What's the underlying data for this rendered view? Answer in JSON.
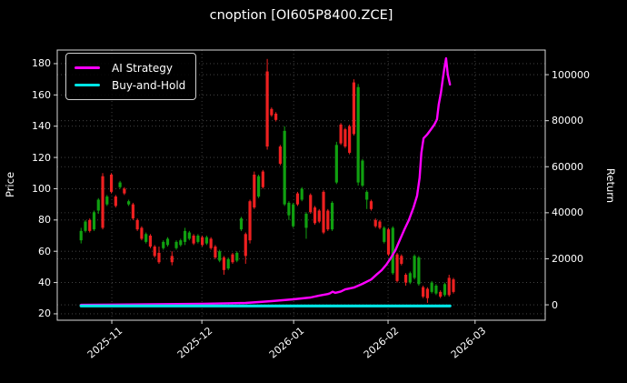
{
  "window": {
    "title": "cnoption [OI605P8400.ZCE]"
  },
  "chart_data": {
    "type": "candlestick",
    "title": "cnoption [OI605P8400.ZCE]",
    "ylabel_left": "Price",
    "ylabel_right": "Return",
    "grid": true,
    "legend_position": "upper-left",
    "x_ticks": [
      {
        "pos": 7.1,
        "label": "2025-11"
      },
      {
        "pos": 27.9,
        "label": "2025-12"
      },
      {
        "pos": 49.1,
        "label": "2026-01"
      },
      {
        "pos": 70.9,
        "label": "2026-02"
      },
      {
        "pos": 91.0,
        "label": "2026-03"
      }
    ],
    "xlim": [
      -5.5,
      107.2
    ],
    "price_ticks": [
      20,
      40,
      60,
      80,
      100,
      120,
      140,
      160,
      180
    ],
    "price_ylim": [
      15.9,
      188.7
    ],
    "return_ticks": [
      0,
      20000,
      40000,
      60000,
      80000,
      100000
    ],
    "return_ylim": [
      -6700,
      110700
    ],
    "colors": {
      "up": "#10a010",
      "down": "#ee2020",
      "strategy": "#ff00ff",
      "buyhold": "#00e5e5",
      "background": "#000000",
      "text": "#ffffff",
      "grid": "#4d4d4d",
      "spine": "#d9d9d9"
    },
    "legend": [
      {
        "label": "AI Strategy",
        "color": "#ff00ff"
      },
      {
        "label": "Buy-and-Hold",
        "color": "#00e5e5"
      }
    ],
    "candles_ohlc": [
      [
        67,
        75,
        65,
        73
      ],
      [
        73,
        80,
        72,
        79
      ],
      [
        80,
        81,
        72,
        73
      ],
      [
        74,
        86,
        73,
        85
      ],
      [
        86,
        94,
        84,
        93
      ],
      [
        108,
        110,
        74,
        75
      ],
      [
        90,
        96,
        89,
        95
      ],
      [
        109,
        110,
        97,
        98
      ],
      [
        95,
        96,
        88,
        89
      ],
      [
        101,
        105,
        100,
        104
      ],
      [
        100,
        101,
        96,
        97
      ],
      [
        90,
        93,
        89,
        92
      ],
      [
        90,
        91,
        80,
        81
      ],
      [
        80,
        81,
        73,
        74
      ],
      [
        75,
        76,
        67,
        68
      ],
      [
        66,
        72,
        65,
        71
      ],
      [
        70,
        71,
        62,
        63
      ],
      [
        63,
        64,
        56,
        57
      ],
      [
        59,
        63,
        52,
        53
      ],
      [
        62,
        67,
        61,
        66
      ],
      [
        64,
        69,
        63,
        68
      ],
      [
        57,
        60,
        51,
        53
      ],
      [
        62,
        67,
        61,
        66
      ],
      [
        64,
        68,
        63,
        67
      ],
      [
        66,
        75,
        64,
        73
      ],
      [
        68,
        73,
        67,
        72
      ],
      [
        70,
        71,
        64,
        65
      ],
      [
        66,
        71,
        65,
        70
      ],
      [
        69,
        70,
        63,
        64
      ],
      [
        65,
        70,
        64,
        69
      ],
      [
        68,
        69,
        61,
        62
      ],
      [
        63,
        64,
        55,
        56
      ],
      [
        54,
        61,
        53,
        60
      ],
      [
        56,
        57,
        45,
        48
      ],
      [
        49,
        56,
        48,
        55
      ],
      [
        58,
        59,
        52,
        53
      ],
      [
        54,
        60,
        53,
        59
      ],
      [
        74,
        82,
        73,
        81
      ],
      [
        71,
        72,
        52,
        57
      ],
      [
        92,
        93,
        65,
        67
      ],
      [
        109,
        111,
        87,
        88
      ],
      [
        95,
        109,
        94,
        108
      ],
      [
        111,
        112,
        100,
        101
      ],
      [
        175,
        183,
        125,
        127
      ],
      [
        151,
        152,
        146,
        147
      ],
      [
        148,
        149,
        143,
        144
      ],
      [
        127,
        128,
        115,
        116
      ],
      [
        90,
        140,
        89,
        137
      ],
      [
        83,
        92,
        80,
        91
      ],
      [
        76,
        91,
        75,
        90
      ],
      [
        97,
        98,
        89,
        90
      ],
      [
        93,
        101,
        92,
        100
      ],
      [
        75,
        85,
        68,
        84
      ],
      [
        96,
        97,
        84,
        85
      ],
      [
        88,
        89,
        77,
        78
      ],
      [
        86,
        87,
        78,
        79
      ],
      [
        98,
        99,
        71,
        72
      ],
      [
        86,
        87,
        73,
        74
      ],
      [
        74,
        92,
        73,
        91
      ],
      [
        104,
        130,
        103,
        128
      ],
      [
        141,
        142,
        128,
        129
      ],
      [
        138,
        139,
        126,
        127
      ],
      [
        140,
        141,
        122,
        123
      ],
      [
        168,
        170,
        134,
        135
      ],
      [
        104,
        167,
        102,
        165
      ],
      [
        102,
        119,
        101,
        118
      ],
      [
        93,
        99,
        87,
        98
      ],
      [
        92,
        93,
        86,
        87
      ],
      [
        80,
        81,
        75,
        76
      ],
      [
        79,
        80,
        74,
        75
      ],
      [
        66,
        76,
        65,
        75
      ],
      [
        74,
        75,
        57,
        58
      ],
      [
        46,
        76,
        45,
        75
      ],
      [
        58,
        59,
        40,
        41
      ],
      [
        57,
        58,
        51,
        52
      ],
      [
        45,
        46,
        38,
        40
      ],
      [
        40,
        47,
        39,
        46
      ],
      [
        43,
        58,
        42,
        57
      ],
      [
        39,
        57,
        38,
        56
      ],
      [
        37,
        38,
        30,
        31
      ],
      [
        36,
        37,
        27,
        30
      ],
      [
        34,
        41,
        33,
        40
      ],
      [
        33,
        39,
        32,
        38
      ],
      [
        34,
        35,
        30,
        31
      ],
      [
        32,
        40,
        31,
        39
      ],
      [
        43,
        45,
        31,
        32
      ],
      [
        42,
        43,
        33,
        34
      ]
    ],
    "series": [
      {
        "name": "AI Strategy",
        "axis": "return",
        "color": "#ff00ff",
        "width": 2.4,
        "points": [
          [
            0,
            0
          ],
          [
            28,
            400
          ],
          [
            38,
            800
          ],
          [
            44,
            1600
          ],
          [
            49,
            2400
          ],
          [
            53,
            3200
          ],
          [
            55,
            4000
          ],
          [
            57,
            4700
          ],
          [
            57.5,
            5000
          ],
          [
            58.1,
            5700
          ],
          [
            58.7,
            5200
          ],
          [
            60,
            5800
          ],
          [
            61,
            6700
          ],
          [
            63,
            7500
          ],
          [
            65,
            9100
          ],
          [
            67,
            11000
          ],
          [
            68.4,
            13400
          ],
          [
            69.4,
            15000
          ],
          [
            70.5,
            17400
          ],
          [
            71.5,
            20200
          ],
          [
            72.6,
            23700
          ],
          [
            73.6,
            28100
          ],
          [
            74.7,
            32800
          ],
          [
            75.7,
            36800
          ],
          [
            76.8,
            42300
          ],
          [
            77.6,
            47400
          ],
          [
            78.2,
            55300
          ],
          [
            78.6,
            66000
          ],
          [
            79.1,
            72300
          ],
          [
            79.9,
            73900
          ],
          [
            80.7,
            75900
          ],
          [
            81.6,
            78300
          ],
          [
            82.2,
            80600
          ],
          [
            82.6,
            87000
          ],
          [
            83.1,
            92100
          ],
          [
            83.5,
            97600
          ],
          [
            83.9,
            102800
          ],
          [
            84.3,
            107100
          ],
          [
            84.7,
            100000
          ],
          [
            85.2,
            95700
          ]
        ]
      },
      {
        "name": "Buy-and-Hold",
        "axis": "return",
        "color": "#00e5e5",
        "width": 3.2,
        "points": [
          [
            0,
            -500
          ],
          [
            85.2,
            -500
          ]
        ]
      }
    ]
  }
}
